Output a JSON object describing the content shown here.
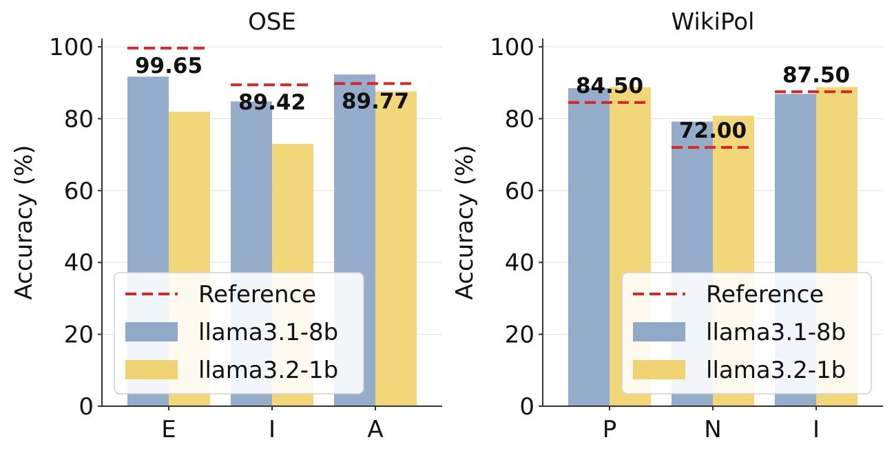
{
  "chart_data": [
    {
      "type": "bar",
      "title": "OSE",
      "ylabel": "Accuracy (%)",
      "xlabel": "",
      "ylim": [
        0,
        100
      ],
      "yticks": [
        0,
        20,
        40,
        60,
        80,
        100
      ],
      "categories": [
        "E",
        "I",
        "A"
      ],
      "series": [
        {
          "name": "llama3.1-8b",
          "values": [
            91.7,
            84.8,
            92.3
          ],
          "color": "#8fa9c7"
        },
        {
          "name": "llama3.2-1b",
          "values": [
            81.9,
            73.0,
            87.6
          ],
          "color": "#f0d473"
        }
      ],
      "reference": {
        "name": "Reference",
        "values": [
          99.65,
          89.42,
          89.77
        ],
        "labels": [
          "99.65",
          "89.42",
          "89.77"
        ],
        "color": "#d62728"
      },
      "legend": {
        "position": "lower-left",
        "entries": [
          "Reference",
          "llama3.1-8b",
          "llama3.2-1b"
        ]
      },
      "grid": true
    },
    {
      "type": "bar",
      "title": "WikiPol",
      "ylabel": "Accuracy (%)",
      "xlabel": "",
      "ylim": [
        0,
        100
      ],
      "yticks": [
        0,
        20,
        40,
        60,
        80,
        100
      ],
      "categories": [
        "P",
        "N",
        "I"
      ],
      "series": [
        {
          "name": "llama3.1-8b",
          "values": [
            88.5,
            79.2,
            86.9
          ],
          "color": "#8fa9c7"
        },
        {
          "name": "llama3.2-1b",
          "values": [
            88.8,
            80.8,
            88.8
          ],
          "color": "#f0d473"
        }
      ],
      "reference": {
        "name": "Reference",
        "values": [
          84.5,
          72.0,
          87.5
        ],
        "labels": [
          "84.50",
          "72.00",
          "87.50"
        ],
        "color": "#d62728"
      },
      "legend": {
        "position": "lower-right",
        "entries": [
          "Reference",
          "llama3.1-8b",
          "llama3.2-1b"
        ]
      },
      "grid": true
    }
  ]
}
